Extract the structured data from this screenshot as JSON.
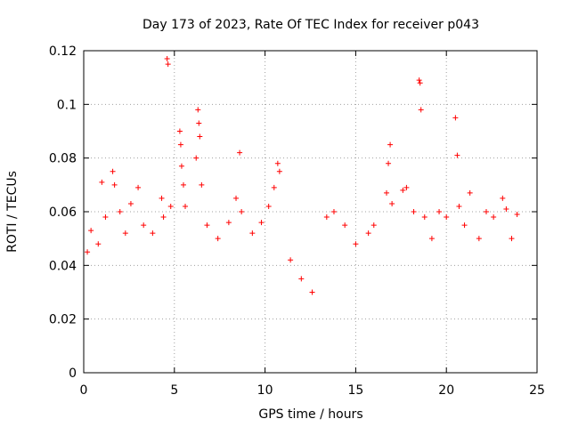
{
  "chart_data": {
    "type": "scatter",
    "title": "Day 173 of 2023, Rate Of TEC Index for receiver p043",
    "xlabel": "GPS time / hours",
    "ylabel": "ROTI / TECUs",
    "xlim": [
      0,
      25
    ],
    "ylim": [
      0,
      0.12
    ],
    "x_ticks": [
      0,
      5,
      10,
      15,
      20,
      25
    ],
    "x_tick_labels": [
      "0",
      "5",
      "10",
      "15",
      "20",
      "25"
    ],
    "y_ticks": [
      0,
      0.02,
      0.04,
      0.06,
      0.08,
      0.1,
      0.12
    ],
    "y_tick_labels": [
      "0",
      "0.02",
      "0.04",
      "0.06",
      "0.08",
      "0.1",
      "0.12"
    ],
    "grid": true,
    "marker": "plus",
    "color": "#ff0000",
    "series": [
      {
        "points": [
          [
            0.2,
            0.045
          ],
          [
            0.4,
            0.053
          ],
          [
            0.8,
            0.048
          ],
          [
            1.0,
            0.071
          ],
          [
            1.2,
            0.058
          ],
          [
            1.6,
            0.075
          ],
          [
            1.7,
            0.07
          ],
          [
            2.0,
            0.06
          ],
          [
            2.3,
            0.052
          ],
          [
            2.6,
            0.063
          ],
          [
            3.0,
            0.069
          ],
          [
            3.3,
            0.055
          ],
          [
            3.8,
            0.052
          ],
          [
            4.3,
            0.065
          ],
          [
            4.4,
            0.058
          ],
          [
            4.6,
            0.117
          ],
          [
            4.65,
            0.115
          ],
          [
            4.8,
            0.062
          ],
          [
            5.3,
            0.09
          ],
          [
            5.35,
            0.085
          ],
          [
            5.4,
            0.077
          ],
          [
            5.5,
            0.07
          ],
          [
            5.6,
            0.062
          ],
          [
            6.2,
            0.08
          ],
          [
            6.3,
            0.098
          ],
          [
            6.35,
            0.093
          ],
          [
            6.4,
            0.088
          ],
          [
            6.5,
            0.07
          ],
          [
            6.8,
            0.055
          ],
          [
            7.4,
            0.05
          ],
          [
            8.0,
            0.056
          ],
          [
            8.4,
            0.065
          ],
          [
            8.6,
            0.082
          ],
          [
            8.7,
            0.06
          ],
          [
            9.3,
            0.052
          ],
          [
            9.8,
            0.056
          ],
          [
            10.2,
            0.062
          ],
          [
            10.5,
            0.069
          ],
          [
            10.7,
            0.078
          ],
          [
            10.8,
            0.075
          ],
          [
            11.4,
            0.042
          ],
          [
            12.0,
            0.035
          ],
          [
            12.6,
            0.03
          ],
          [
            13.4,
            0.058
          ],
          [
            13.8,
            0.06
          ],
          [
            14.4,
            0.055
          ],
          [
            15.0,
            0.048
          ],
          [
            15.7,
            0.052
          ],
          [
            16.0,
            0.055
          ],
          [
            16.7,
            0.067
          ],
          [
            16.8,
            0.078
          ],
          [
            16.9,
            0.085
          ],
          [
            17.0,
            0.063
          ],
          [
            17.6,
            0.068
          ],
          [
            17.8,
            0.069
          ],
          [
            18.2,
            0.06
          ],
          [
            18.5,
            0.109
          ],
          [
            18.55,
            0.108
          ],
          [
            18.6,
            0.098
          ],
          [
            18.8,
            0.058
          ],
          [
            19.2,
            0.05
          ],
          [
            19.6,
            0.06
          ],
          [
            20.0,
            0.058
          ],
          [
            20.5,
            0.095
          ],
          [
            20.6,
            0.081
          ],
          [
            20.7,
            0.062
          ],
          [
            21.0,
            0.055
          ],
          [
            21.3,
            0.067
          ],
          [
            21.8,
            0.05
          ],
          [
            22.2,
            0.06
          ],
          [
            22.6,
            0.058
          ],
          [
            23.1,
            0.065
          ],
          [
            23.3,
            0.061
          ],
          [
            23.6,
            0.05
          ],
          [
            23.9,
            0.059
          ]
        ]
      }
    ]
  }
}
